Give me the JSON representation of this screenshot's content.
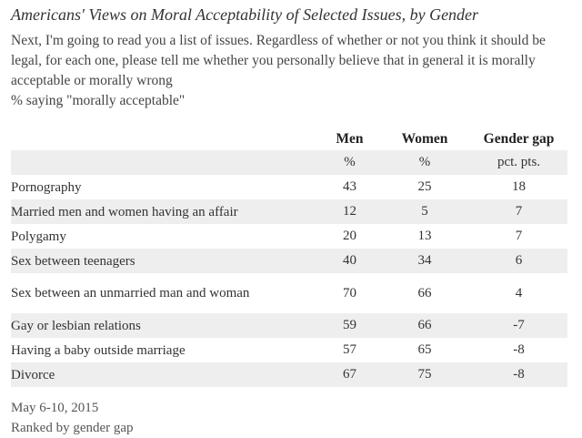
{
  "title": "Americans' Views on Moral Acceptability of Selected Issues, by Gender",
  "question": "Next, I'm going to read you a list of issues. Regardless of whether or not you think it should be legal, for each one, please tell me whether you personally believe that in general it is morally acceptable or morally wrong",
  "subtitle": "% saying \"morally acceptable\"",
  "table": {
    "headers": {
      "men": "Men",
      "women": "Women",
      "gap": "Gender gap"
    },
    "units": {
      "men": "%",
      "women": "%",
      "gap": "pct. pts."
    },
    "rows": [
      {
        "issue": "Pornography",
        "men": "43",
        "women": "25",
        "gap": "18"
      },
      {
        "issue": "Married men and women having an affair",
        "men": "12",
        "women": "5",
        "gap": "7"
      },
      {
        "issue": "Polygamy",
        "men": "20",
        "women": "13",
        "gap": "7"
      },
      {
        "issue": "Sex between teenagers",
        "men": "40",
        "women": "34",
        "gap": "6"
      },
      {
        "issue": "Sex between an unmarried man and woman",
        "men": "70",
        "women": "66",
        "gap": "4"
      },
      {
        "issue": "Gay or lesbian relations",
        "men": "59",
        "women": "66",
        "gap": "-7"
      },
      {
        "issue": "Having a baby outside marriage",
        "men": "57",
        "women": "65",
        "gap": "-8"
      },
      {
        "issue": "Divorce",
        "men": "67",
        "women": "75",
        "gap": "-8"
      }
    ]
  },
  "footer": {
    "date": "May 6-10, 2015",
    "note": "Ranked by gender gap"
  }
}
